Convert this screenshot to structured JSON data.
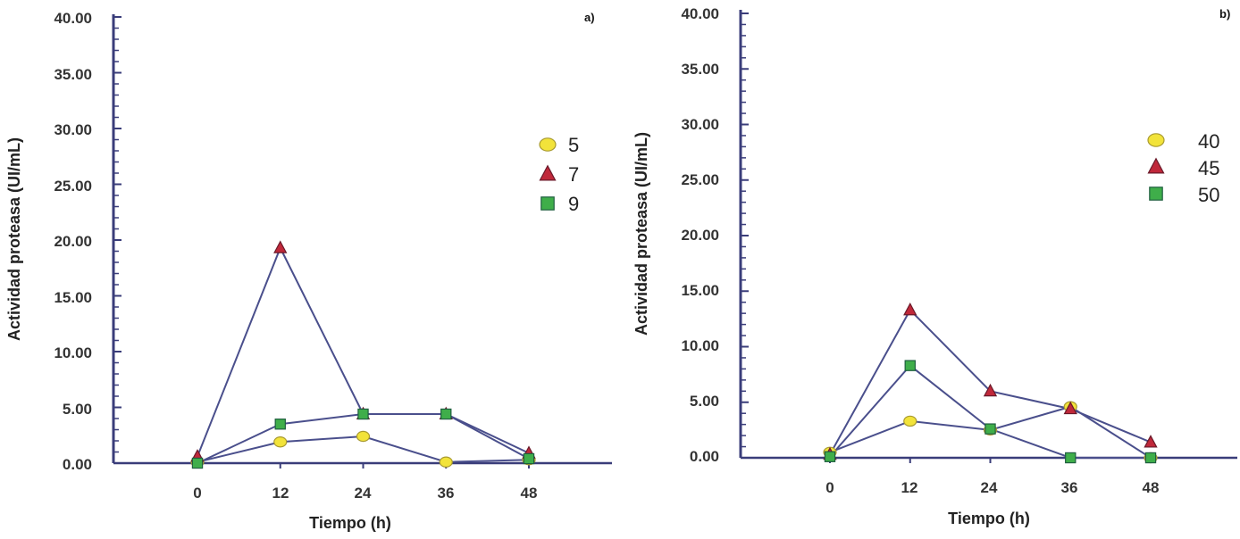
{
  "colors": {
    "axis": "#3a3d7a",
    "line": "#4a4f8c",
    "circle_fill": "#f2e33a",
    "circle_stroke": "#a89a30",
    "triangle_fill": "#c0283a",
    "triangle_stroke": "#6a1a2a",
    "square_fill": "#3fae4a",
    "square_stroke": "#1f5f3f"
  },
  "chart_data": [
    {
      "type": "line",
      "panel_label": "a)",
      "xlabel": "Tiempo (h)",
      "ylabel": "Actividad proteasa (UI/mL)",
      "x": [
        0,
        12,
        24,
        36,
        48
      ],
      "x_tick_labels": [
        "0",
        "12",
        "24",
        "36",
        "48"
      ],
      "xlim": [
        -12,
        60
      ],
      "ylim": [
        0,
        40
      ],
      "y_tick_labels": [
        "0.00",
        "5.00",
        "10.00",
        "15.00",
        "20.00",
        "25.00",
        "30.00",
        "35.00",
        "40.00"
      ],
      "legend_position": "right",
      "series": [
        {
          "name": "5",
          "marker": "circle",
          "values": [
            0.1,
            1.9,
            2.4,
            0.1,
            0.3
          ]
        },
        {
          "name": "7",
          "marker": "triangle",
          "values": [
            0.6,
            19.3,
            4.4,
            4.4,
            0.9
          ]
        },
        {
          "name": "9",
          "marker": "square",
          "values": [
            0.0,
            3.5,
            4.4,
            4.4,
            0.4
          ]
        }
      ]
    },
    {
      "type": "line",
      "panel_label": "b)",
      "xlabel": "Tiempo (h)",
      "ylabel": "Actividad proteasa (UI/mL)",
      "x": [
        0,
        12,
        24,
        36,
        48
      ],
      "x_tick_labels": [
        "0",
        "12",
        "24",
        "36",
        "48"
      ],
      "xlim": [
        -12,
        60
      ],
      "ylim": [
        0,
        40
      ],
      "y_tick_labels": [
        "0.00",
        "5.00",
        "10.00",
        "15.00",
        "20.00",
        "25.00",
        "30.00",
        "35.00",
        "40.00"
      ],
      "legend_position": "right",
      "series": [
        {
          "name": "40",
          "marker": "circle",
          "values": [
            0.5,
            3.3,
            2.5,
            4.6,
            0.0
          ]
        },
        {
          "name": "45",
          "marker": "triangle",
          "values": [
            0.3,
            13.3,
            6.0,
            4.4,
            1.4
          ]
        },
        {
          "name": "50",
          "marker": "square",
          "values": [
            0.1,
            8.3,
            2.6,
            0.0,
            0.0
          ]
        }
      ]
    }
  ]
}
